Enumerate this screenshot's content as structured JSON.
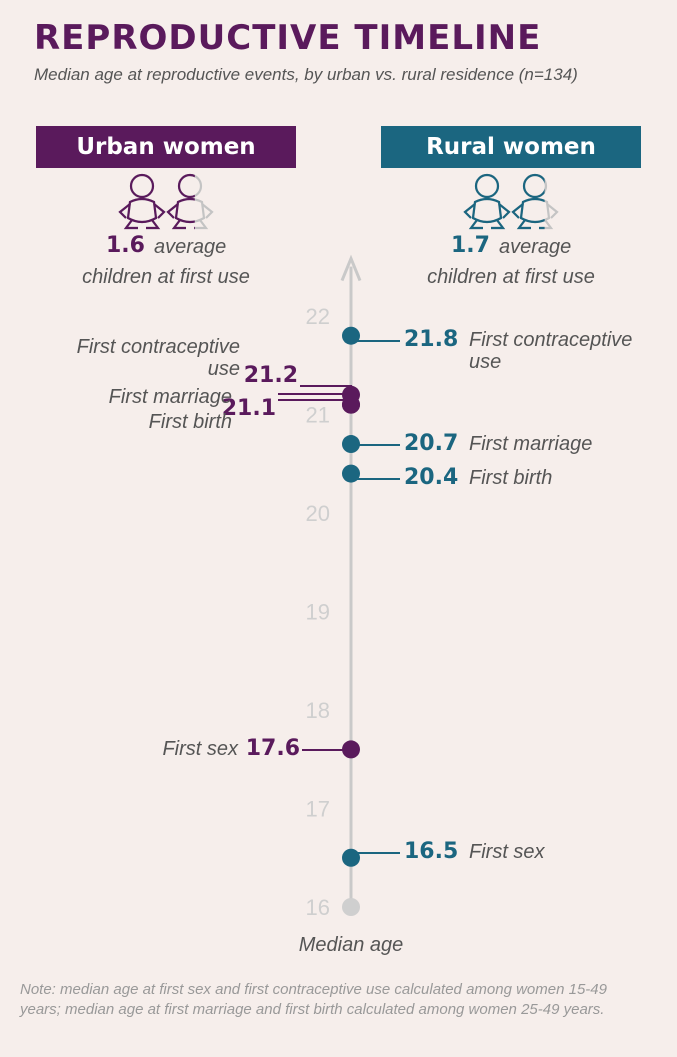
{
  "chart_data": {
    "type": "timeline",
    "title": "REPRODUCTIVE TIMELINE",
    "subtitle": "Median age at reproductive events, by urban vs. rural residence (n=134)",
    "y_label": "Median age",
    "categories": [
      "First sex",
      "First marriage",
      "First birth",
      "First contraceptive use"
    ],
    "series": [
      {
        "name": "Urban women",
        "color": "#5a1a5c",
        "values": [
          17.6,
          21.1,
          21.1,
          21.2
        ],
        "children": 1.6,
        "children_caption": [
          "average",
          "children at first use"
        ]
      },
      {
        "name": "Rural women",
        "color": "#1b6680",
        "values": [
          16.5,
          20.7,
          20.4,
          21.8
        ],
        "children": 1.7,
        "children_caption": [
          "average",
          "children at first use"
        ]
      }
    ],
    "ylim": [
      16,
      22.4
    ],
    "yticks": [
      16,
      17,
      18,
      19,
      20,
      21,
      22
    ],
    "note": "Note: median age at first sex and first contraceptive use calculated among women 15-49 years; median age at first marriage and first birth calculated among women 25-49 years."
  }
}
